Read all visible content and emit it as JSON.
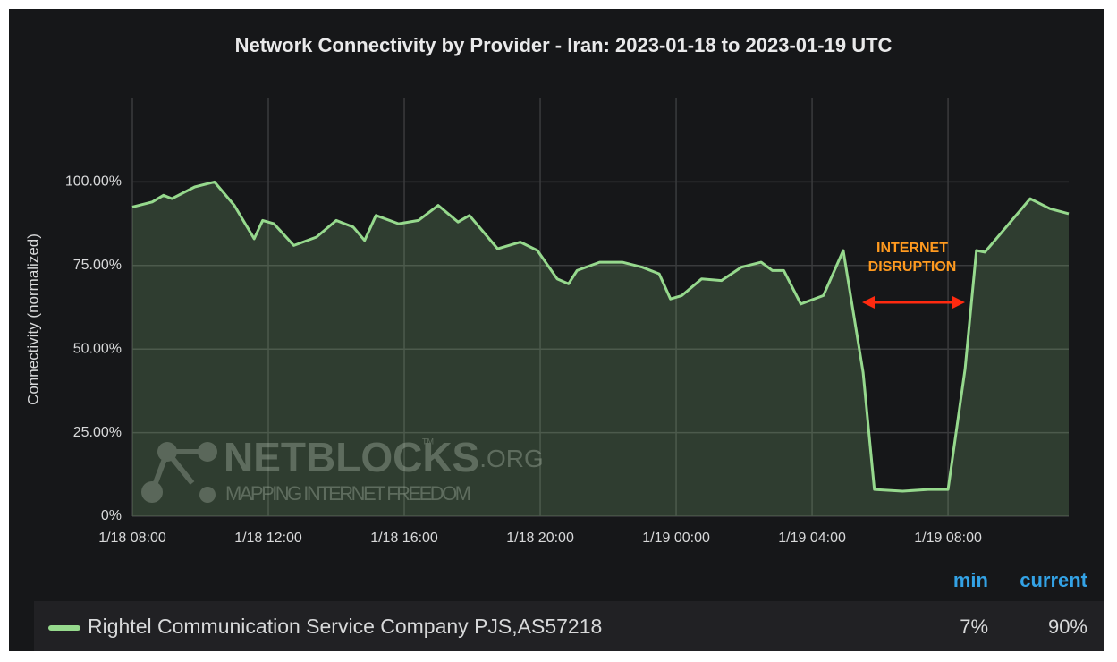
{
  "chart_data": {
    "type": "line",
    "title": "Network Connectivity by Provider - Iran: 2023-01-18 to 2023-01-19 UTC",
    "ylabel": "Connectivity (normalized)",
    "x": [
      "2023-01-18T08:00",
      "2023-01-18T08:35",
      "2023-01-18T08:55",
      "2023-01-18T09:10",
      "2023-01-18T09:50",
      "2023-01-18T10:25",
      "2023-01-18T11:00",
      "2023-01-18T11:35",
      "2023-01-18T11:50",
      "2023-01-18T12:10",
      "2023-01-18T12:45",
      "2023-01-18T13:25",
      "2023-01-18T14:00",
      "2023-01-18T14:30",
      "2023-01-18T14:50",
      "2023-01-18T15:10",
      "2023-01-18T15:50",
      "2023-01-18T16:25",
      "2023-01-18T17:00",
      "2023-01-18T17:35",
      "2023-01-18T17:55",
      "2023-01-18T18:45",
      "2023-01-18T19:25",
      "2023-01-18T19:55",
      "2023-01-18T20:30",
      "2023-01-18T20:50",
      "2023-01-18T21:05",
      "2023-01-18T21:45",
      "2023-01-18T22:25",
      "2023-01-18T23:00",
      "2023-01-18T23:30",
      "2023-01-18T23:50",
      "2023-01-19T00:10",
      "2023-01-19T00:45",
      "2023-01-19T01:20",
      "2023-01-19T01:55",
      "2023-01-19T02:30",
      "2023-01-19T02:50",
      "2023-01-19T03:10",
      "2023-01-19T03:40",
      "2023-01-19T04:20",
      "2023-01-19T04:55",
      "2023-01-19T05:30",
      "2023-01-19T05:50",
      "2023-01-19T06:40",
      "2023-01-19T07:25",
      "2023-01-19T08:00",
      "2023-01-19T08:30",
      "2023-01-19T08:50",
      "2023-01-19T09:05",
      "2023-01-19T09:45",
      "2023-01-19T10:25",
      "2023-01-19T11:00",
      "2023-01-19T11:33"
    ],
    "series": [
      {
        "name": "Rightel Communication Service Company PJS,AS57218",
        "color": "#96d98d",
        "values": [
          92.5,
          94,
          96,
          95,
          98.5,
          100,
          93,
          83,
          88.5,
          87.5,
          81,
          83.5,
          88.5,
          86.5,
          82.5,
          90,
          87.5,
          88.5,
          93,
          88,
          90,
          80,
          82,
          79.5,
          71,
          69.5,
          73.5,
          76,
          76,
          74.5,
          72.5,
          65,
          66,
          71,
          70.5,
          74.5,
          76,
          73.5,
          73.5,
          63.5,
          66,
          79.5,
          43,
          8,
          7.5,
          8,
          8,
          44,
          79.5,
          79,
          87,
          95,
          92,
          90.5
        ]
      }
    ],
    "xlim": [
      "2023-01-18T08:00",
      "2023-01-19T11:33"
    ],
    "xticks": [
      {
        "value": "2023-01-18T08:00",
        "label": "1/18 08:00"
      },
      {
        "value": "2023-01-18T12:00",
        "label": "1/18 12:00"
      },
      {
        "value": "2023-01-18T16:00",
        "label": "1/18 16:00"
      },
      {
        "value": "2023-01-18T20:00",
        "label": "1/18 20:00"
      },
      {
        "value": "2023-01-19T00:00",
        "label": "1/19 00:00"
      },
      {
        "value": "2023-01-19T04:00",
        "label": "1/19 04:00"
      },
      {
        "value": "2023-01-19T08:00",
        "label": "1/19 08:00"
      }
    ],
    "ylim": [
      0,
      125
    ],
    "yticks": [
      {
        "value": 0,
        "label": "0%"
      },
      {
        "value": 25,
        "label": "25.00%"
      },
      {
        "value": 50,
        "label": "50.00%"
      },
      {
        "value": 75,
        "label": "75.00%"
      },
      {
        "value": 100,
        "label": "100.00%"
      }
    ],
    "grid": true,
    "annotation": [
      "INTERNET",
      "DISRUPTION"
    ],
    "watermark": {
      "title": "NETBLOCKS",
      "suffix": ".ORG",
      "tm": "TM",
      "tagline": "MAPPING INTERNET FREEDOM"
    },
    "legend_stats": [
      {
        "name": "min",
        "value": 7,
        "label": "7%"
      },
      {
        "name": "current",
        "value": 90,
        "label": "90%"
      }
    ]
  }
}
